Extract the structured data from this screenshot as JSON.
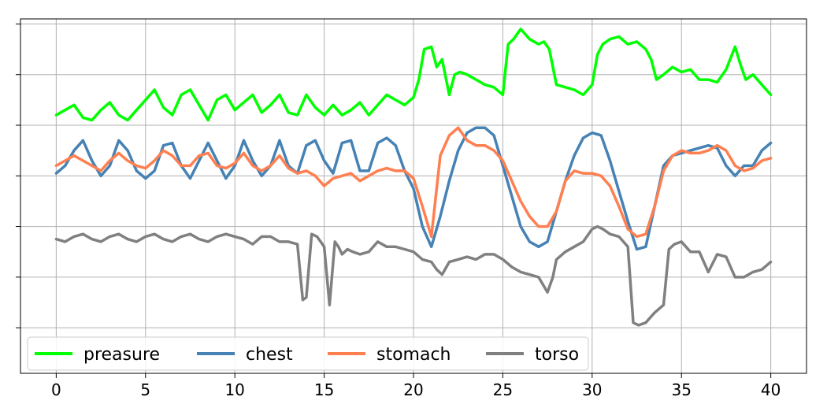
{
  "chart_data": {
    "type": "line",
    "title": "",
    "xlabel": "",
    "ylabel": "",
    "xlim": [
      -2,
      42
    ],
    "ylim": [
      -0.9,
      6.1
    ],
    "xticks": [
      0,
      5,
      10,
      15,
      20,
      25,
      30,
      35,
      40
    ],
    "xtick_labels": [
      "0",
      "5",
      "10",
      "15",
      "20",
      "25",
      "30",
      "35",
      "40"
    ],
    "yticks": [
      0,
      1,
      2,
      3,
      4,
      5,
      6
    ],
    "ytick_labels_visible": false,
    "grid": true,
    "legend": {
      "placement": "lower-left",
      "columns": 4
    },
    "series": [
      {
        "name": "preasure",
        "color": "#00ff00",
        "x": [
          0,
          0.5,
          1,
          1.5,
          2,
          2.5,
          3,
          3.5,
          4,
          4.5,
          5,
          5.5,
          6,
          6.5,
          7,
          7.5,
          8,
          8.5,
          9,
          9.5,
          10,
          10.5,
          11,
          11.5,
          12,
          12.5,
          13,
          13.5,
          14,
          14.5,
          15,
          15.5,
          16,
          16.5,
          17,
          17.5,
          18,
          18.5,
          19,
          19.5,
          20,
          20.3,
          20.6,
          21,
          21.3,
          21.6,
          22,
          22.3,
          22.6,
          23,
          23.5,
          24,
          24.5,
          25,
          25.3,
          25.6,
          26,
          26.5,
          27,
          27.3,
          27.6,
          28,
          28.5,
          29,
          29.5,
          30,
          30.3,
          30.6,
          31,
          31.5,
          32,
          32.5,
          33,
          33.3,
          33.6,
          34,
          34.5,
          35,
          35.5,
          36,
          36.5,
          37,
          37.5,
          38,
          38.3,
          38.6,
          39,
          39.5,
          40
        ],
        "y": [
          4.2,
          4.3,
          4.4,
          4.15,
          4.1,
          4.3,
          4.45,
          4.2,
          4.1,
          4.3,
          4.5,
          4.7,
          4.35,
          4.2,
          4.6,
          4.7,
          4.4,
          4.1,
          4.5,
          4.6,
          4.3,
          4.45,
          4.6,
          4.25,
          4.4,
          4.6,
          4.25,
          4.2,
          4.6,
          4.35,
          4.2,
          4.4,
          4.2,
          4.3,
          4.45,
          4.2,
          4.4,
          4.6,
          4.5,
          4.4,
          4.55,
          4.9,
          5.5,
          5.55,
          5.15,
          5.3,
          4.6,
          5.0,
          5.05,
          5.0,
          4.9,
          4.8,
          4.75,
          4.6,
          5.6,
          5.7,
          5.9,
          5.7,
          5.6,
          5.65,
          5.5,
          4.8,
          4.75,
          4.7,
          4.6,
          4.8,
          5.4,
          5.6,
          5.7,
          5.75,
          5.6,
          5.65,
          5.5,
          5.3,
          4.9,
          5.0,
          5.15,
          5.05,
          5.1,
          4.9,
          4.9,
          4.85,
          5.1,
          5.55,
          5.2,
          4.9,
          5.0,
          4.8,
          4.6
        ]
      },
      {
        "name": "chest",
        "color": "#4682b4",
        "x": [
          0,
          0.5,
          1,
          1.5,
          2,
          2.5,
          3,
          3.5,
          4,
          4.5,
          5,
          5.5,
          6,
          6.5,
          7,
          7.5,
          8,
          8.5,
          9,
          9.5,
          10,
          10.5,
          11,
          11.5,
          12,
          12.5,
          13,
          13.5,
          14,
          14.5,
          15,
          15.5,
          16,
          16.5,
          17,
          17.5,
          18,
          18.5,
          19,
          19.5,
          20,
          20.5,
          21,
          21.5,
          22,
          22.5,
          23,
          23.5,
          24,
          24.5,
          25,
          25.5,
          26,
          26.5,
          27,
          27.5,
          28,
          28.5,
          29,
          29.5,
          30,
          30.5,
          31,
          31.5,
          32,
          32.5,
          33,
          33.5,
          34,
          34.5,
          35,
          35.5,
          36,
          36.5,
          37,
          37.5,
          38,
          38.5,
          39,
          39.5,
          40
        ],
        "y": [
          3.05,
          3.2,
          3.5,
          3.7,
          3.3,
          3.0,
          3.2,
          3.7,
          3.5,
          3.1,
          2.95,
          3.1,
          3.6,
          3.65,
          3.2,
          2.95,
          3.3,
          3.65,
          3.3,
          2.95,
          3.2,
          3.7,
          3.3,
          3.0,
          3.2,
          3.7,
          3.2,
          3.05,
          3.6,
          3.7,
          3.3,
          3.05,
          3.65,
          3.7,
          3.1,
          3.1,
          3.65,
          3.75,
          3.6,
          3.1,
          2.75,
          2.0,
          1.6,
          2.2,
          2.9,
          3.5,
          3.85,
          3.95,
          3.95,
          3.8,
          3.2,
          2.6,
          2.0,
          1.7,
          1.6,
          1.7,
          2.3,
          2.9,
          3.4,
          3.75,
          3.85,
          3.8,
          3.3,
          2.7,
          2.1,
          1.55,
          1.6,
          2.4,
          3.2,
          3.4,
          3.45,
          3.5,
          3.55,
          3.6,
          3.55,
          3.2,
          3.0,
          3.2,
          3.2,
          3.5,
          3.65
        ]
      },
      {
        "name": "stomach",
        "color": "#ff7f50",
        "x": [
          0,
          0.5,
          1,
          1.5,
          2,
          2.5,
          3,
          3.5,
          4,
          4.5,
          5,
          5.5,
          6,
          6.5,
          7,
          7.5,
          8,
          8.5,
          9,
          9.5,
          10,
          10.5,
          11,
          11.5,
          12,
          12.5,
          13,
          13.5,
          14,
          14.5,
          15,
          15.5,
          16,
          16.5,
          17,
          17.5,
          18,
          18.5,
          19,
          19.5,
          20,
          20.5,
          21,
          21.5,
          22,
          22.5,
          23,
          23.5,
          24,
          24.5,
          25,
          25.5,
          26,
          26.5,
          27,
          27.5,
          28,
          28.5,
          29,
          29.5,
          30,
          30.5,
          31,
          31.5,
          32,
          32.5,
          33,
          33.5,
          34,
          34.5,
          35,
          35.5,
          36,
          36.5,
          37,
          37.5,
          38,
          38.5,
          39,
          39.5,
          40
        ],
        "y": [
          3.2,
          3.3,
          3.4,
          3.3,
          3.2,
          3.1,
          3.3,
          3.45,
          3.3,
          3.2,
          3.15,
          3.3,
          3.5,
          3.4,
          3.2,
          3.2,
          3.4,
          3.45,
          3.2,
          3.15,
          3.25,
          3.45,
          3.2,
          3.1,
          3.2,
          3.4,
          3.15,
          3.05,
          3.1,
          3.0,
          2.8,
          2.95,
          3.0,
          3.05,
          2.9,
          3.0,
          3.1,
          3.15,
          3.1,
          3.1,
          2.95,
          2.4,
          1.8,
          3.4,
          3.8,
          3.95,
          3.7,
          3.6,
          3.6,
          3.5,
          3.3,
          2.9,
          2.5,
          2.2,
          2.0,
          2.0,
          2.3,
          2.9,
          3.1,
          3.05,
          3.05,
          3.0,
          2.8,
          2.4,
          1.95,
          1.8,
          1.85,
          2.4,
          3.1,
          3.4,
          3.5,
          3.45,
          3.45,
          3.5,
          3.6,
          3.5,
          3.2,
          3.1,
          3.15,
          3.3,
          3.35
        ]
      },
      {
        "name": "torso",
        "color": "#808080",
        "x": [
          0,
          0.5,
          1,
          1.5,
          2,
          2.5,
          3,
          3.5,
          4,
          4.5,
          5,
          5.5,
          6,
          6.5,
          7,
          7.5,
          8,
          8.5,
          9,
          9.5,
          10,
          10.5,
          11,
          11.5,
          12,
          12.5,
          13,
          13.5,
          13.8,
          14,
          14.3,
          14.6,
          15,
          15.3,
          15.6,
          15.8,
          16,
          16.3,
          16.6,
          17,
          17.5,
          18,
          18.5,
          19,
          19.5,
          20,
          20.5,
          21,
          21.3,
          21.6,
          22,
          22.5,
          23,
          23.5,
          24,
          24.5,
          25,
          25.5,
          26,
          26.5,
          27,
          27.5,
          27.8,
          28,
          28.5,
          29,
          29.5,
          30,
          30.3,
          30.6,
          31,
          31.5,
          32,
          32.3,
          32.6,
          33,
          33.5,
          34,
          34.3,
          34.6,
          35,
          35.5,
          36,
          36.5,
          37,
          37.5,
          38,
          38.5,
          39,
          39.5,
          40
        ],
        "y": [
          1.75,
          1.7,
          1.8,
          1.85,
          1.75,
          1.7,
          1.8,
          1.85,
          1.75,
          1.7,
          1.8,
          1.85,
          1.75,
          1.7,
          1.8,
          1.85,
          1.75,
          1.7,
          1.8,
          1.85,
          1.8,
          1.75,
          1.65,
          1.8,
          1.8,
          1.7,
          1.7,
          1.65,
          0.55,
          0.6,
          1.85,
          1.8,
          1.6,
          0.45,
          1.7,
          1.6,
          1.45,
          1.55,
          1.5,
          1.45,
          1.5,
          1.7,
          1.6,
          1.6,
          1.55,
          1.5,
          1.35,
          1.3,
          1.15,
          1.05,
          1.3,
          1.35,
          1.4,
          1.35,
          1.45,
          1.45,
          1.35,
          1.2,
          1.1,
          1.05,
          1.0,
          0.7,
          1.0,
          1.35,
          1.5,
          1.6,
          1.7,
          1.95,
          2.0,
          1.95,
          1.85,
          1.8,
          1.6,
          0.1,
          0.05,
          0.1,
          0.3,
          0.45,
          1.55,
          1.65,
          1.7,
          1.5,
          1.5,
          1.1,
          1.45,
          1.4,
          1.0,
          1.0,
          1.1,
          1.15,
          1.3
        ]
      }
    ]
  }
}
